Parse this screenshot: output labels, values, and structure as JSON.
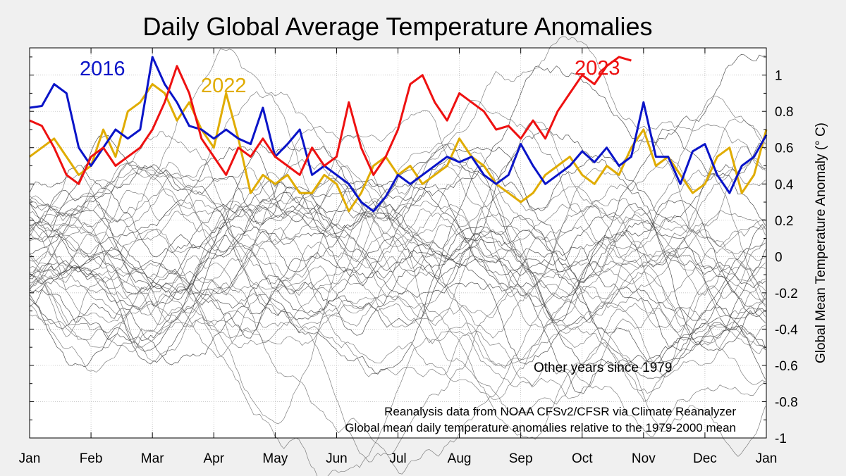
{
  "chart_data": {
    "type": "line",
    "title": "Daily Global Average Temperature Anomalies",
    "xlabel": "",
    "ylabel": "Global Mean Temperature Anomaly (° C)",
    "x_tick_labels": [
      "Jan",
      "Feb",
      "Mar",
      "Apr",
      "May",
      "Jun",
      "Jul",
      "Aug",
      "Sep",
      "Oct",
      "Nov",
      "Dec",
      "Jan"
    ],
    "y_tick_labels": [
      "1",
      "0.8",
      "0.6",
      "0.4",
      "0.2",
      "0",
      "-0.2",
      "-0.4",
      "-0.6",
      "-0.8",
      "-1"
    ],
    "ylim": [
      -1,
      1.15
    ],
    "xlim_month": [
      0,
      12
    ],
    "grid": true,
    "other_years_label": "Other years since 1979",
    "notes": [
      "Reanalysis data from NOAA CFSv2/CFSR via Climate Reanalyzer",
      "Global mean daily temperature anomalies relative to the 1979-2000 mean"
    ],
    "other_years_count": 40,
    "series": [
      {
        "name": "2016",
        "color": "#0a14c8",
        "x_month": [
          0.0,
          0.2,
          0.4,
          0.6,
          0.8,
          1.0,
          1.2,
          1.4,
          1.6,
          1.8,
          2.0,
          2.2,
          2.4,
          2.6,
          2.8,
          3.0,
          3.2,
          3.4,
          3.6,
          3.8,
          4.0,
          4.2,
          4.4,
          4.6,
          4.8,
          5.0,
          5.2,
          5.4,
          5.6,
          5.8,
          6.0,
          6.2,
          6.4,
          6.6,
          6.8,
          7.0,
          7.2,
          7.4,
          7.6,
          7.8,
          8.0,
          8.2,
          8.4,
          8.6,
          8.8,
          9.0,
          9.2,
          9.4,
          9.6,
          9.8,
          10.0,
          10.2,
          10.4,
          10.6,
          10.8,
          11.0,
          11.2,
          11.4,
          11.6,
          11.8,
          12.0
        ],
        "y": [
          0.82,
          0.83,
          0.95,
          0.9,
          0.6,
          0.5,
          0.6,
          0.7,
          0.65,
          0.7,
          1.1,
          0.95,
          0.85,
          0.72,
          0.7,
          0.65,
          0.7,
          0.65,
          0.62,
          0.82,
          0.55,
          0.62,
          0.7,
          0.45,
          0.5,
          0.45,
          0.4,
          0.3,
          0.25,
          0.33,
          0.45,
          0.4,
          0.45,
          0.5,
          0.55,
          0.52,
          0.55,
          0.45,
          0.4,
          0.45,
          0.62,
          0.5,
          0.4,
          0.45,
          0.5,
          0.58,
          0.52,
          0.6,
          0.5,
          0.55,
          0.85,
          0.55,
          0.55,
          0.4,
          0.58,
          0.62,
          0.45,
          0.35,
          0.5,
          0.55,
          0.67
        ]
      },
      {
        "name": "2022",
        "color": "#e0ac00",
        "x_month": [
          0.0,
          0.2,
          0.4,
          0.6,
          0.8,
          1.0,
          1.2,
          1.4,
          1.6,
          1.8,
          2.0,
          2.2,
          2.4,
          2.6,
          2.8,
          3.0,
          3.2,
          3.4,
          3.6,
          3.8,
          4.0,
          4.2,
          4.4,
          4.6,
          4.8,
          5.0,
          5.2,
          5.4,
          5.6,
          5.8,
          6.0,
          6.2,
          6.4,
          6.6,
          6.8,
          7.0,
          7.2,
          7.4,
          7.6,
          7.8,
          8.0,
          8.2,
          8.4,
          8.6,
          8.8,
          9.0,
          9.2,
          9.4,
          9.6,
          9.8,
          10.0,
          10.2,
          10.4,
          10.6,
          10.8,
          11.0,
          11.2,
          11.4,
          11.6,
          11.8,
          12.0
        ],
        "y": [
          0.55,
          0.6,
          0.65,
          0.55,
          0.45,
          0.5,
          0.7,
          0.55,
          0.8,
          0.85,
          0.95,
          0.9,
          0.75,
          0.85,
          0.7,
          0.6,
          0.9,
          0.65,
          0.35,
          0.45,
          0.4,
          0.45,
          0.35,
          0.35,
          0.45,
          0.4,
          0.25,
          0.35,
          0.5,
          0.55,
          0.45,
          0.5,
          0.4,
          0.45,
          0.5,
          0.65,
          0.55,
          0.5,
          0.4,
          0.35,
          0.3,
          0.35,
          0.45,
          0.5,
          0.55,
          0.45,
          0.4,
          0.5,
          0.45,
          0.6,
          0.7,
          0.5,
          0.55,
          0.45,
          0.35,
          0.4,
          0.55,
          0.6,
          0.35,
          0.45,
          0.7
        ]
      },
      {
        "name": "2023",
        "color": "#ee1111",
        "x_month": [
          0.0,
          0.2,
          0.4,
          0.6,
          0.8,
          1.0,
          1.2,
          1.4,
          1.6,
          1.8,
          2.0,
          2.2,
          2.4,
          2.6,
          2.8,
          3.0,
          3.2,
          3.4,
          3.6,
          3.8,
          4.0,
          4.2,
          4.4,
          4.6,
          4.8,
          5.0,
          5.2,
          5.4,
          5.6,
          5.8,
          6.0,
          6.2,
          6.4,
          6.6,
          6.8,
          7.0,
          7.2,
          7.4,
          7.6,
          7.8,
          8.0,
          8.2,
          8.4,
          8.6,
          8.8,
          9.0,
          9.2,
          9.4,
          9.6,
          9.8
        ],
        "y": [
          0.75,
          0.72,
          0.6,
          0.45,
          0.4,
          0.55,
          0.6,
          0.5,
          0.55,
          0.6,
          0.7,
          0.85,
          1.05,
          0.9,
          0.65,
          0.55,
          0.45,
          0.6,
          0.55,
          0.65,
          0.55,
          0.5,
          0.45,
          0.6,
          0.5,
          0.55,
          0.85,
          0.6,
          0.45,
          0.55,
          0.7,
          0.95,
          1.0,
          0.85,
          0.75,
          0.9,
          0.85,
          0.8,
          0.7,
          0.72,
          0.65,
          0.75,
          0.65,
          0.8,
          0.9,
          1.0,
          0.95,
          1.05,
          1.1,
          1.08
        ]
      }
    ]
  }
}
